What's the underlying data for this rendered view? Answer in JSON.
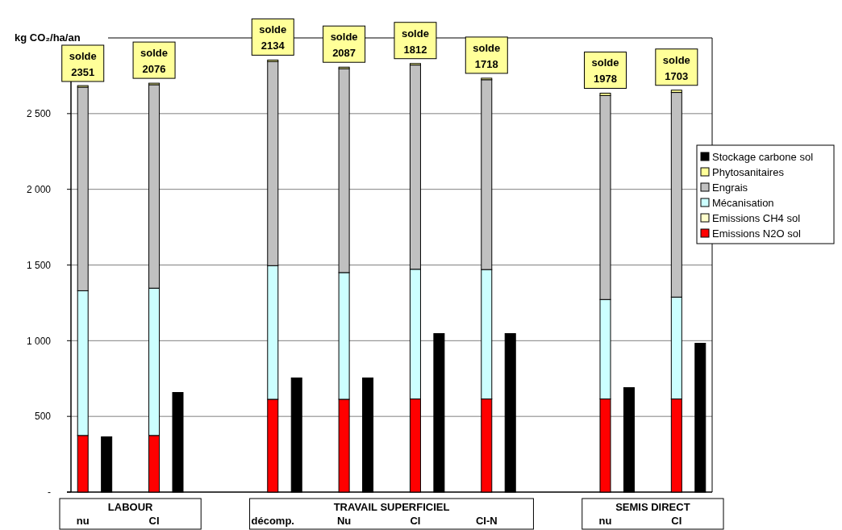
{
  "chart_data": {
    "type": "bar",
    "ylabel": "kg CO₂/ha/an",
    "categories": [
      "nu",
      null,
      null,
      "CI",
      null,
      null,
      null,
      null,
      "décomp.",
      null,
      null,
      "Nu",
      null,
      null,
      "CI",
      null,
      null,
      "CI-N",
      null,
      null,
      null,
      null,
      "nu",
      null,
      null,
      "CI",
      null
    ],
    "stacked": true,
    "series": [
      {
        "name": "Emissions N2O sol",
        "color": "#ff0000",
        "values": [
          374,
          null,
          null,
          374,
          null,
          null,
          null,
          null,
          613,
          null,
          null,
          613,
          null,
          null,
          615,
          null,
          null,
          615,
          null,
          null,
          null,
          null,
          615,
          null,
          null,
          615,
          null
        ]
      },
      {
        "name": "Emissions CH4 sol",
        "color": "#ffffcc",
        "values": [
          0,
          null,
          null,
          0,
          null,
          null,
          null,
          null,
          0,
          null,
          null,
          0,
          null,
          null,
          0,
          null,
          null,
          0,
          null,
          null,
          null,
          null,
          0,
          null,
          null,
          0,
          null
        ]
      },
      {
        "name": "Mécanisation",
        "color": "#ccffff",
        "values": [
          956,
          null,
          null,
          973,
          null,
          null,
          null,
          null,
          883,
          null,
          null,
          837,
          null,
          null,
          857,
          null,
          null,
          855,
          null,
          null,
          null,
          null,
          657,
          null,
          null,
          673,
          null
        ]
      },
      {
        "name": "Engrais",
        "color": "#c0c0c0",
        "values": [
          1345,
          null,
          null,
          1344,
          null,
          null,
          null,
          null,
          1348,
          null,
          null,
          1347,
          null,
          null,
          1349,
          null,
          null,
          1254,
          null,
          null,
          null,
          null,
          1348,
          null,
          null,
          1352,
          null
        ]
      },
      {
        "name": "Phytosanitaires",
        "color": "#ffff99",
        "values": [
          10,
          null,
          null,
          10,
          null,
          null,
          null,
          null,
          10,
          null,
          null,
          10,
          null,
          null,
          10,
          null,
          null,
          10,
          null,
          null,
          null,
          null,
          15,
          null,
          null,
          15,
          null
        ]
      },
      {
        "name": "Stockage carbone sol",
        "color": "#000000",
        "values": [
          null,
          365,
          null,
          null,
          658,
          null,
          null,
          null,
          null,
          754,
          null,
          null,
          754,
          null,
          null,
          1047,
          null,
          null,
          1047,
          null,
          null,
          null,
          null,
          690,
          null,
          null,
          983
        ]
      }
    ],
    "totals": [
      "solde 2351",
      null,
      null,
      "solde 2076",
      null,
      null,
      null,
      null,
      "solde 2134",
      null,
      null,
      "solde 2087",
      null,
      null,
      "solde 1812",
      null,
      null,
      "solde 1718",
      null,
      null,
      null,
      null,
      "solde 1978",
      null,
      null,
      "solde 1703",
      null
    ],
    "annotations": [
      "LABOUR",
      "TRAVAIL SUPERFICIEL",
      "SEMIS DIRECT"
    ],
    "ylim": [
      0,
      3000
    ],
    "yticks": [
      {
        "value": 0,
        "label": "-"
      },
      500,
      {
        "value": 1000,
        "label": "1 000"
      },
      {
        "value": 1500,
        "label": "1 500"
      },
      {
        "value": 2000,
        "label": "2 000"
      },
      {
        "value": 2500,
        "label": "2 500"
      }
    ],
    "grid": "y",
    "legend": "right"
  }
}
